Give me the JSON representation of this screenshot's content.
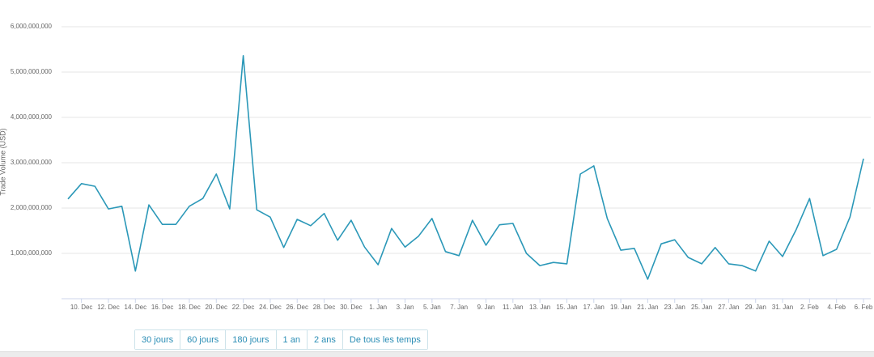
{
  "chart_data": {
    "type": "line",
    "y_label": "Trade Volume (USD)",
    "categories": [
      null,
      "10. Dec",
      null,
      "12. Dec",
      null,
      "14. Dec",
      null,
      "16. Dec",
      null,
      "18. Dec",
      null,
      "20. Dec",
      null,
      "22. Dec",
      null,
      "24. Dec",
      null,
      "26. Dec",
      null,
      "28. Dec",
      null,
      "30. Dec",
      null,
      "1. Jan",
      null,
      "3. Jan",
      null,
      "5. Jan",
      null,
      "7. Jan",
      null,
      "9. Jan",
      null,
      "11. Jan",
      null,
      "13. Jan",
      null,
      "15. Jan",
      null,
      "17. Jan",
      null,
      "19. Jan",
      null,
      "21. Jan",
      null,
      "23. Jan",
      null,
      "25. Jan",
      null,
      "27. Jan",
      null,
      "29. Jan",
      null,
      "31. Jan",
      null,
      "2. Feb",
      null,
      "4. Feb",
      null,
      "6. Feb"
    ],
    "values": [
      2200000000,
      2540000000,
      2480000000,
      1980000000,
      2040000000,
      610000000,
      2070000000,
      1640000000,
      1640000000,
      2040000000,
      2210000000,
      2750000000,
      1980000000,
      5360000000,
      1960000000,
      1800000000,
      1130000000,
      1750000000,
      1610000000,
      1880000000,
      1290000000,
      1730000000,
      1140000000,
      750000000,
      1550000000,
      1140000000,
      1380000000,
      1770000000,
      1040000000,
      950000000,
      1730000000,
      1180000000,
      1630000000,
      1660000000,
      1000000000,
      730000000,
      800000000,
      770000000,
      2750000000,
      2930000000,
      1770000000,
      1070000000,
      1110000000,
      430000000,
      1210000000,
      1300000000,
      910000000,
      770000000,
      1130000000,
      770000000,
      730000000,
      610000000,
      1270000000,
      930000000,
      1520000000,
      2210000000,
      950000000,
      1090000000,
      1800000000,
      3090000000
    ],
    "color": "#2b98b8",
    "ylim": [
      0,
      6000000000
    ],
    "yticks": [
      {
        "value": 1000000000,
        "label": "1,000,000,000"
      },
      {
        "value": 2000000000,
        "label": "2,000,000,000"
      },
      {
        "value": 3000000000,
        "label": "3,000,000,000"
      },
      {
        "value": 4000000000,
        "label": "4,000,000,000"
      },
      {
        "value": 5000000000,
        "label": "5,000,000,000"
      },
      {
        "value": 6000000000,
        "label": "6,000,000,000"
      }
    ],
    "grid": true
  },
  "ui": {
    "buttons": [
      "30 jours",
      "60 jours",
      "180 jours",
      "1 an",
      "2 ans",
      "De tous les temps"
    ]
  }
}
